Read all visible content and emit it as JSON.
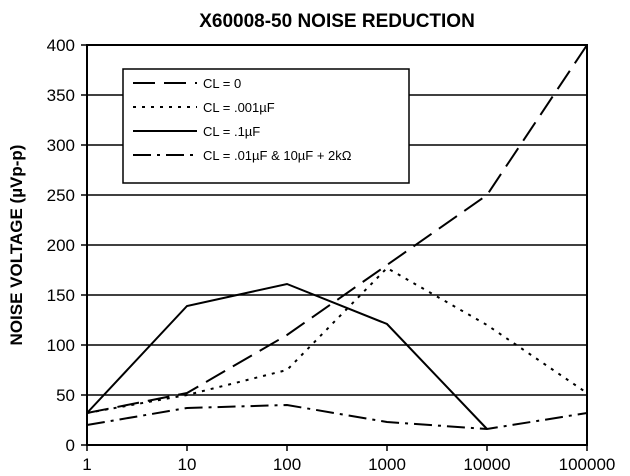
{
  "chart_data": {
    "type": "line",
    "title": "X60008-50 NOISE REDUCTION",
    "xlabel": "",
    "ylabel": "NOISE VOLTAGE (µVp-p)",
    "x": [
      1,
      10,
      100,
      1000,
      10000,
      100000
    ],
    "x_tick_labels": [
      "1",
      "10",
      "100",
      "1000",
      "10000",
      "100000"
    ],
    "x_scale": "log",
    "xlim": [
      1,
      100000
    ],
    "ylim": [
      0,
      400
    ],
    "y_ticks": [
      0,
      50,
      100,
      150,
      200,
      250,
      300,
      350,
      400
    ],
    "y_tick_labels": [
      "0",
      "50",
      "100",
      "150",
      "200",
      "250",
      "300",
      "350",
      "400"
    ],
    "grid": "horizontal",
    "legend_position": "top-left",
    "series": [
      {
        "name": "CL = 0",
        "dash": "dashed",
        "points": [
          [
            1,
            32
          ],
          [
            10,
            52
          ],
          [
            100,
            110
          ],
          [
            1000,
            180
          ],
          [
            10000,
            250
          ],
          [
            100000,
            400
          ]
        ]
      },
      {
        "name": "CL = .001µF",
        "dash": "dotted",
        "points": [
          [
            1,
            32
          ],
          [
            10,
            50
          ],
          [
            100,
            75
          ],
          [
            1000,
            177
          ],
          [
            10000,
            120
          ],
          [
            100000,
            52
          ]
        ]
      },
      {
        "name": "CL = .1µF",
        "dash": "solid",
        "points": [
          [
            1,
            32
          ],
          [
            10,
            139
          ],
          [
            100,
            161
          ],
          [
            1000,
            121
          ],
          [
            10000,
            16
          ]
        ]
      },
      {
        "name": "CL = .01µF & 10µF + 2kΩ",
        "dash": "dashdot",
        "points": [
          [
            1,
            20
          ],
          [
            10,
            37
          ],
          [
            100,
            40
          ],
          [
            1000,
            23
          ],
          [
            10000,
            16
          ],
          [
            100000,
            32
          ]
        ]
      }
    ]
  }
}
